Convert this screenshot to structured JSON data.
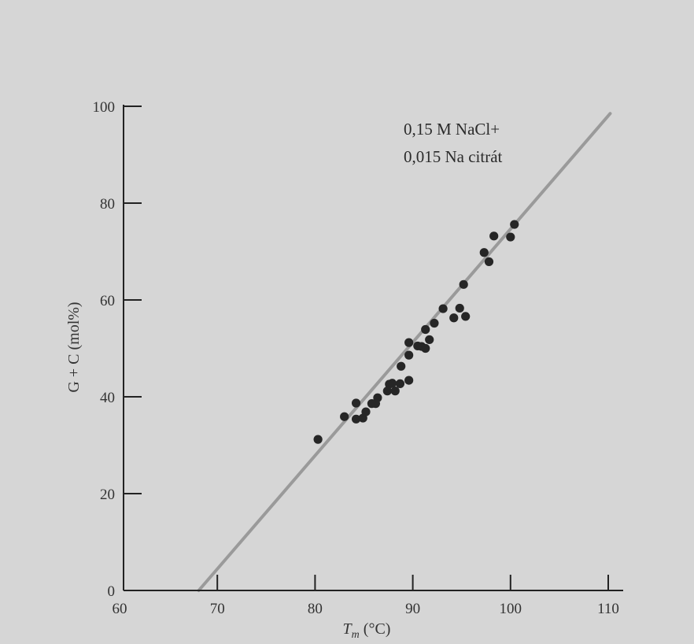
{
  "chart_data": {
    "type": "scatter",
    "xlim": [
      60,
      110
    ],
    "ylim": [
      0,
      100
    ],
    "xticks": [
      "60",
      "70",
      "80",
      "90",
      "100",
      "110"
    ],
    "yticks": [
      "0",
      "20",
      "40",
      "60",
      "80",
      "100"
    ],
    "ylabel": "G + C (mol%)",
    "xlabel_main": "T",
    "xlabel_sub": "m",
    "xlabel_unit": " (°C)",
    "annotation": [
      "0,15 M NaCl+",
      "0,015 Na citrát"
    ],
    "trendline": {
      "x": [
        68.1,
        110.2
      ],
      "y": [
        0,
        98.5
      ]
    },
    "points": [
      [
        80.3,
        31.2
      ],
      [
        83.0,
        35.9
      ],
      [
        84.2,
        35.4
      ],
      [
        84.2,
        38.7
      ],
      [
        84.9,
        35.6
      ],
      [
        85.2,
        36.9
      ],
      [
        85.8,
        38.6
      ],
      [
        86.2,
        38.6
      ],
      [
        86.4,
        39.8
      ],
      [
        87.4,
        41.2
      ],
      [
        87.6,
        42.6
      ],
      [
        87.9,
        42.8
      ],
      [
        88.2,
        41.2
      ],
      [
        88.7,
        42.7
      ],
      [
        88.8,
        46.3
      ],
      [
        89.6,
        43.4
      ],
      [
        89.6,
        48.6
      ],
      [
        89.6,
        51.2
      ],
      [
        90.5,
        50.5
      ],
      [
        90.9,
        50.4
      ],
      [
        91.3,
        50.0
      ],
      [
        91.3,
        53.9
      ],
      [
        91.7,
        51.8
      ],
      [
        92.2,
        55.2
      ],
      [
        93.1,
        58.2
      ],
      [
        94.2,
        56.3
      ],
      [
        94.8,
        58.3
      ],
      [
        95.2,
        63.2
      ],
      [
        95.4,
        56.6
      ],
      [
        97.3,
        69.8
      ],
      [
        97.8,
        67.9
      ],
      [
        98.3,
        73.2
      ],
      [
        100.0,
        73.0
      ],
      [
        100.4,
        75.6
      ]
    ]
  }
}
